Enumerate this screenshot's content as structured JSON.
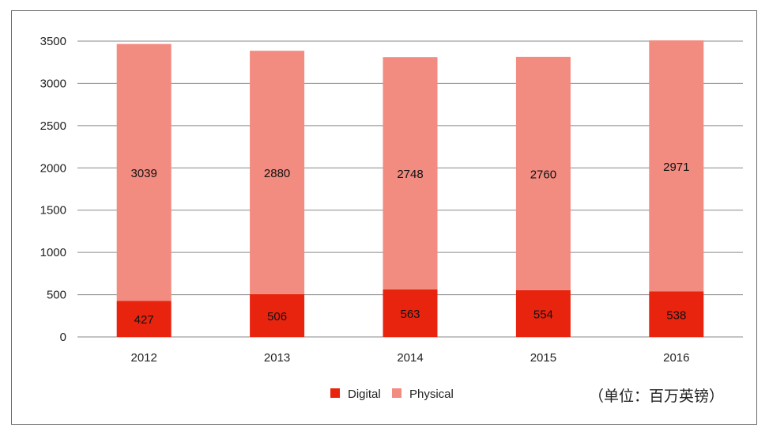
{
  "chart_data": {
    "type": "bar",
    "stacked": true,
    "categories": [
      "2012",
      "2013",
      "2014",
      "2015",
      "2016"
    ],
    "series": [
      {
        "name": "Digital",
        "values": [
          427,
          506,
          563,
          554,
          538
        ],
        "color": "#e8240f"
      },
      {
        "name": "Physical",
        "values": [
          3039,
          2880,
          2748,
          2760,
          2971
        ],
        "color": "#f28b80"
      }
    ],
    "ylim": [
      0,
      3500
    ],
    "yticks": [
      "0",
      "500",
      "1000",
      "1500",
      "2000",
      "2500",
      "3000",
      "3500"
    ],
    "grid": true,
    "legend_position": "bottom",
    "note": "（单位：百万英镑）"
  }
}
